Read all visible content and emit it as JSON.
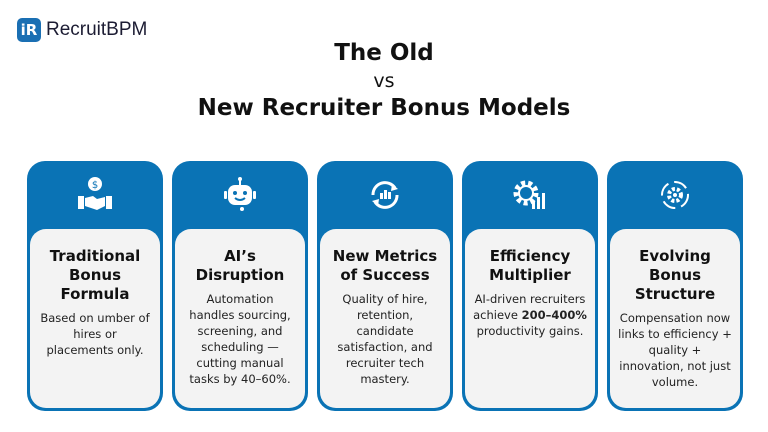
{
  "logo": {
    "mark": "iR",
    "text": "RecruitBPM"
  },
  "title": {
    "line1": "The Old",
    "line2": "vs",
    "line3": "New Recruiter Bonus Models"
  },
  "cards": [
    {
      "icon": "handshake-dollar-icon",
      "heading": "Traditional Bonus Formula",
      "body": "Based on umber of hires or placements only."
    },
    {
      "icon": "robot-icon",
      "heading": "AI’s Disruption",
      "body": "Automation handles sourcing, screening, and scheduling — cutting manual tasks by 40–60%."
    },
    {
      "icon": "refresh-cycle-icon",
      "heading": "New Metrics of Success",
      "body": "Quality of hire, retention, candidate satisfaction, and recruiter tech mastery."
    },
    {
      "icon": "gear-chart-icon",
      "heading": "Efficiency Multiplier",
      "body_pre": "AI-driven recruiters achieve",
      "body_bold": "200–400%",
      "body_post": "productivity gains."
    },
    {
      "icon": "gear-cycle-icon",
      "heading": "Evolving Bonus Structure",
      "body": "Compensation now links to efficiency + quality + innovation, not just volume."
    }
  ],
  "colors": {
    "accent": "#0a73b5",
    "card_bg": "#f3f3f3"
  }
}
